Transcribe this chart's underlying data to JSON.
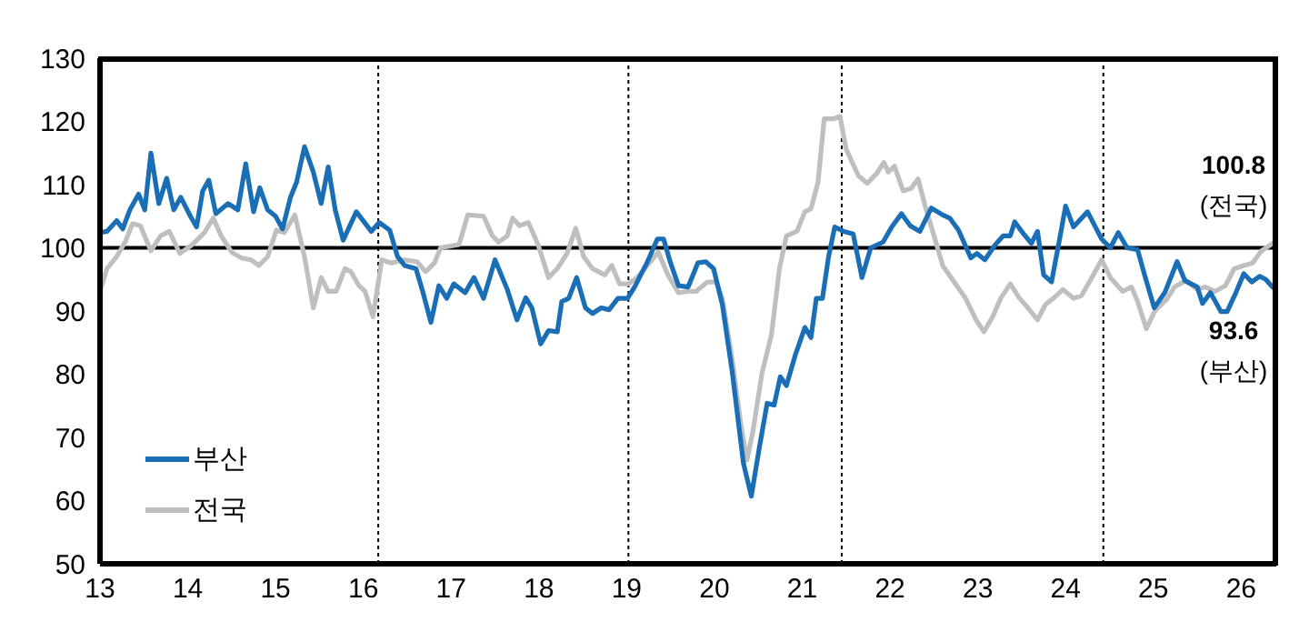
{
  "chart_data": {
    "type": "line",
    "xlim": [
      13,
      26.4
    ],
    "xticks": [
      13,
      14,
      15,
      16,
      17,
      18,
      19,
      20,
      21,
      22,
      23,
      24,
      25,
      26
    ],
    "ylim": [
      50,
      130
    ],
    "yticks": [
      50,
      60,
      70,
      80,
      90,
      100,
      110,
      120,
      130
    ],
    "grid": false,
    "legend": "bottom left",
    "line_style": "solid",
    "ref_lines": [
      {
        "axis": "y",
        "value": 100,
        "color": "#000000",
        "line_style": "solid"
      },
      {
        "axis": "x",
        "value": 16.17,
        "color": "#000000",
        "line_style": "dotted"
      },
      {
        "axis": "x",
        "value": 19.02,
        "color": "#000000",
        "line_style": "dotted"
      },
      {
        "axis": "x",
        "value": 21.45,
        "color": "#000000",
        "line_style": "dotted"
      },
      {
        "axis": "x",
        "value": 24.43,
        "color": "#000000",
        "line_style": "dotted"
      }
    ],
    "annotations": [
      {
        "text": "100.8\n(전국)",
        "x": 26.37,
        "y": 100.8
      },
      {
        "text": "93.6\n(부산)",
        "x": 26.37,
        "y": 93.6
      }
    ],
    "series": [
      {
        "name": "부산",
        "color": "#1a6eb5",
        "x": [
          13.0,
          13.08,
          13.19,
          13.26,
          13.34,
          13.44,
          13.51,
          13.58,
          13.67,
          13.76,
          13.84,
          13.92,
          14.03,
          14.1,
          14.17,
          14.24,
          14.32,
          14.46,
          14.57,
          14.66,
          14.75,
          14.82,
          14.91,
          15.0,
          15.08,
          15.17,
          15.24,
          15.33,
          15.43,
          15.52,
          15.6,
          15.68,
          15.77,
          15.92,
          16.09,
          16.18,
          16.3,
          16.39,
          16.47,
          16.6,
          16.68,
          16.77,
          16.86,
          16.95,
          17.03,
          17.16,
          17.26,
          17.37,
          17.5,
          17.64,
          17.75,
          17.85,
          17.92,
          18.02,
          18.11,
          18.21,
          18.26,
          18.34,
          18.43,
          18.53,
          18.61,
          18.71,
          18.8,
          18.9,
          19.01,
          19.09,
          19.23,
          19.35,
          19.42,
          19.5,
          19.59,
          19.7,
          19.81,
          19.9,
          19.99,
          20.09,
          20.2,
          20.33,
          20.42,
          20.51,
          20.6,
          20.68,
          20.75,
          20.82,
          20.92,
          21.03,
          21.1,
          21.16,
          21.23,
          21.3,
          21.37,
          21.47,
          21.58,
          21.68,
          21.78,
          21.92,
          22.02,
          22.13,
          22.23,
          22.34,
          22.47,
          22.6,
          22.68,
          22.78,
          22.92,
          22.99,
          23.08,
          23.2,
          23.29,
          23.37,
          23.42,
          23.51,
          23.61,
          23.68,
          23.75,
          23.84,
          23.92,
          24.0,
          24.09,
          24.25,
          24.41,
          24.51,
          24.6,
          24.7,
          24.82,
          24.9,
          25.01,
          25.13,
          25.27,
          25.36,
          25.5,
          25.56,
          25.65,
          25.77,
          25.84,
          25.94,
          26.03,
          26.12,
          26.21,
          26.28,
          26.37
        ],
        "values": [
          102.4,
          102.6,
          104.3,
          103,
          106,
          108.5,
          106,
          115,
          107,
          111,
          106,
          108,
          105,
          103.3,
          109,
          110.7,
          105.4,
          107,
          106,
          113.3,
          105.7,
          109.5,
          106,
          105,
          103,
          108,
          110.4,
          116,
          112,
          107,
          112.8,
          106,
          101.2,
          105.7,
          102.6,
          104,
          102.8,
          98.6,
          97.2,
          96.7,
          92.9,
          88.2,
          94,
          92,
          94.3,
          92.9,
          95.3,
          92,
          98.1,
          93.4,
          88.6,
          92.1,
          90.5,
          84.8,
          86.9,
          86.7,
          91.5,
          92,
          95.3,
          90.5,
          89.6,
          90.5,
          90.2,
          92,
          92,
          93.8,
          97.6,
          101.4,
          101.4,
          97.6,
          94,
          93.8,
          97.6,
          97.8,
          96.7,
          91,
          80.6,
          65.9,
          60.7,
          68.3,
          75.4,
          75.1,
          79.6,
          78.2,
          83,
          87.4,
          85.8,
          92,
          92,
          98.6,
          103.3,
          102.6,
          102.2,
          95.3,
          100,
          100.9,
          103.3,
          105.4,
          103.5,
          102.6,
          106.3,
          105.2,
          104.7,
          102.8,
          98.4,
          99.1,
          98.1,
          100.5,
          101.9,
          101.9,
          104.1,
          102.4,
          100.7,
          102.6,
          95.7,
          94.6,
          100.5,
          106.6,
          103.3,
          105.7,
          101.4,
          100,
          102.4,
          100,
          99.7,
          95.7,
          90.5,
          92.9,
          97.8,
          94.8,
          93.8,
          91.2,
          92.9,
          89.9,
          89.9,
          92.9,
          95.9,
          94.6,
          95.5,
          95,
          93.6
        ]
      },
      {
        "name": "전국",
        "color": "#bfbfbf",
        "x": [
          13.0,
          13.08,
          13.19,
          13.29,
          13.37,
          13.46,
          13.58,
          13.69,
          13.79,
          13.91,
          14.05,
          14.19,
          14.29,
          14.38,
          14.5,
          14.61,
          14.72,
          14.81,
          14.91,
          15.01,
          15.1,
          15.22,
          15.33,
          15.43,
          15.52,
          15.6,
          15.69,
          15.79,
          15.86,
          15.95,
          16.02,
          16.11,
          16.21,
          16.32,
          16.46,
          16.61,
          16.71,
          16.81,
          16.88,
          17.09,
          17.19,
          17.37,
          17.47,
          17.54,
          17.64,
          17.7,
          17.78,
          17.88,
          17.99,
          18.11,
          18.21,
          18.32,
          18.42,
          18.51,
          18.61,
          18.75,
          18.83,
          18.92,
          19.02,
          19.12,
          19.26,
          19.36,
          19.47,
          19.59,
          19.7,
          19.79,
          19.92,
          20.02,
          20.09,
          20.2,
          20.3,
          20.37,
          20.44,
          20.54,
          20.65,
          20.74,
          20.82,
          20.94,
          21.03,
          21.1,
          21.18,
          21.25,
          21.36,
          21.43,
          21.5,
          21.64,
          21.74,
          21.85,
          21.93,
          21.98,
          22.05,
          22.15,
          22.24,
          22.32,
          22.4,
          22.49,
          22.6,
          22.73,
          22.86,
          22.98,
          23.07,
          23.17,
          23.26,
          23.37,
          23.47,
          23.57,
          23.68,
          23.77,
          23.86,
          23.97,
          24.09,
          24.18,
          24.3,
          24.41,
          24.51,
          24.65,
          24.75,
          24.82,
          24.92,
          25.02,
          25.15,
          25.24,
          25.37,
          25.5,
          25.59,
          25.7,
          25.82,
          25.92,
          26.03,
          26.13,
          26.23,
          26.37
        ],
        "values": [
          93.1,
          96.7,
          98.6,
          101,
          103.8,
          103.5,
          99.5,
          101.9,
          102.6,
          99.1,
          100.5,
          102.4,
          104.7,
          101.9,
          99.3,
          98.4,
          98.1,
          97.2,
          98.6,
          102.8,
          102.4,
          105.2,
          98.6,
          90.5,
          95.3,
          93.1,
          93.1,
          96.7,
          96.2,
          94,
          93.1,
          89.1,
          98.1,
          97.6,
          98.1,
          97.8,
          96.2,
          97.6,
          100,
          100.5,
          105.2,
          105,
          101.9,
          100.9,
          101.9,
          104.7,
          103.5,
          104,
          100.5,
          95.3,
          96.7,
          99.1,
          103.1,
          98.6,
          96.7,
          95.7,
          97.2,
          94.3,
          94.3,
          95.3,
          97.6,
          99.3,
          95.7,
          92.9,
          93.1,
          93.1,
          94.6,
          94.6,
          92,
          82.5,
          72.1,
          66.4,
          71.1,
          80.1,
          86.3,
          96.7,
          101.9,
          102.6,
          105.7,
          106.2,
          110.4,
          120.4,
          120.4,
          120.8,
          115.6,
          111.4,
          110.2,
          111.8,
          113.5,
          112,
          112.9,
          109,
          109.4,
          110.9,
          106.6,
          102.4,
          97.2,
          94.6,
          92,
          88.6,
          86.7,
          89.1,
          92,
          94.3,
          92.1,
          90.5,
          88.6,
          91,
          92,
          93.4,
          92,
          92.4,
          95.3,
          98.1,
          95.3,
          93.1,
          93.8,
          91.5,
          87.2,
          90.1,
          91.8,
          93.8,
          94.8,
          93.4,
          93.8,
          93.1,
          94,
          96.7,
          97.2,
          97.6,
          99.5,
          100.8
        ]
      }
    ]
  }
}
